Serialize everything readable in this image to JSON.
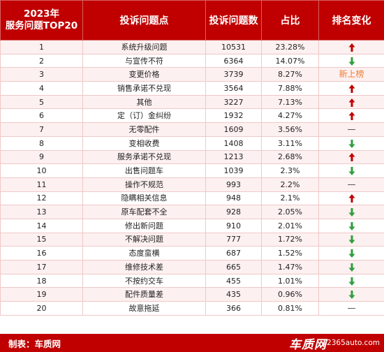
{
  "header": {
    "rank_title_line1": "2023年",
    "rank_title_line2": "服务问题TOP20",
    "issue": "投诉问题点",
    "count": "投诉问题数",
    "share": "占比",
    "change": "排名变化"
  },
  "rows": [
    {
      "rank": "1",
      "issue": "系统升级问题",
      "count": "10531",
      "share": "23.28%",
      "change": "up"
    },
    {
      "rank": "2",
      "issue": "与宣传不符",
      "count": "6364",
      "share": "14.07%",
      "change": "down"
    },
    {
      "rank": "3",
      "issue": "变更价格",
      "count": "3739",
      "share": "8.27%",
      "change": "new",
      "change_text": "新上榜"
    },
    {
      "rank": "4",
      "issue": "销售承诺不兑现",
      "count": "3564",
      "share": "7.88%",
      "change": "up"
    },
    {
      "rank": "5",
      "issue": "其他",
      "count": "3227",
      "share": "7.13%",
      "change": "up"
    },
    {
      "rank": "6",
      "issue": "定（订）金纠纷",
      "count": "1932",
      "share": "4.27%",
      "change": "up"
    },
    {
      "rank": "7",
      "issue": "无零配件",
      "count": "1609",
      "share": "3.56%",
      "change": "same",
      "change_text": "—"
    },
    {
      "rank": "8",
      "issue": "变相收费",
      "count": "1408",
      "share": "3.11%",
      "change": "down"
    },
    {
      "rank": "9",
      "issue": "服务承诺不兑现",
      "count": "1213",
      "share": "2.68%",
      "change": "up"
    },
    {
      "rank": "10",
      "issue": "出售问题车",
      "count": "1039",
      "share": "2.3%",
      "change": "down"
    },
    {
      "rank": "11",
      "issue": "操作不规范",
      "count": "993",
      "share": "2.2%",
      "change": "same",
      "change_text": "—"
    },
    {
      "rank": "12",
      "issue": "隐瞒相关信息",
      "count": "948",
      "share": "2.1%",
      "change": "up"
    },
    {
      "rank": "13",
      "issue": "原车配套不全",
      "count": "928",
      "share": "2.05%",
      "change": "down"
    },
    {
      "rank": "14",
      "issue": "修出新问题",
      "count": "910",
      "share": "2.01%",
      "change": "down"
    },
    {
      "rank": "15",
      "issue": "不解决问题",
      "count": "777",
      "share": "1.72%",
      "change": "down"
    },
    {
      "rank": "16",
      "issue": "态度蛮横",
      "count": "687",
      "share": "1.52%",
      "change": "down"
    },
    {
      "rank": "17",
      "issue": "维修技术差",
      "count": "665",
      "share": "1.47%",
      "change": "down"
    },
    {
      "rank": "18",
      "issue": "不按约交车",
      "count": "455",
      "share": "1.01%",
      "change": "down"
    },
    {
      "rank": "19",
      "issue": "配件质量差",
      "count": "435",
      "share": "0.96%",
      "change": "down"
    },
    {
      "rank": "20",
      "issue": "故意拖延",
      "count": "366",
      "share": "0.81%",
      "change": "same",
      "change_text": "—"
    }
  ],
  "footer": {
    "credit": "制表：车质网",
    "logo": "车质网",
    "site": "12365auto.com"
  },
  "colors": {
    "header_bg": "#c00000",
    "arrow_up": "#c00000",
    "arrow_down": "#2e9e3e",
    "new_text": "#ed7d31"
  }
}
